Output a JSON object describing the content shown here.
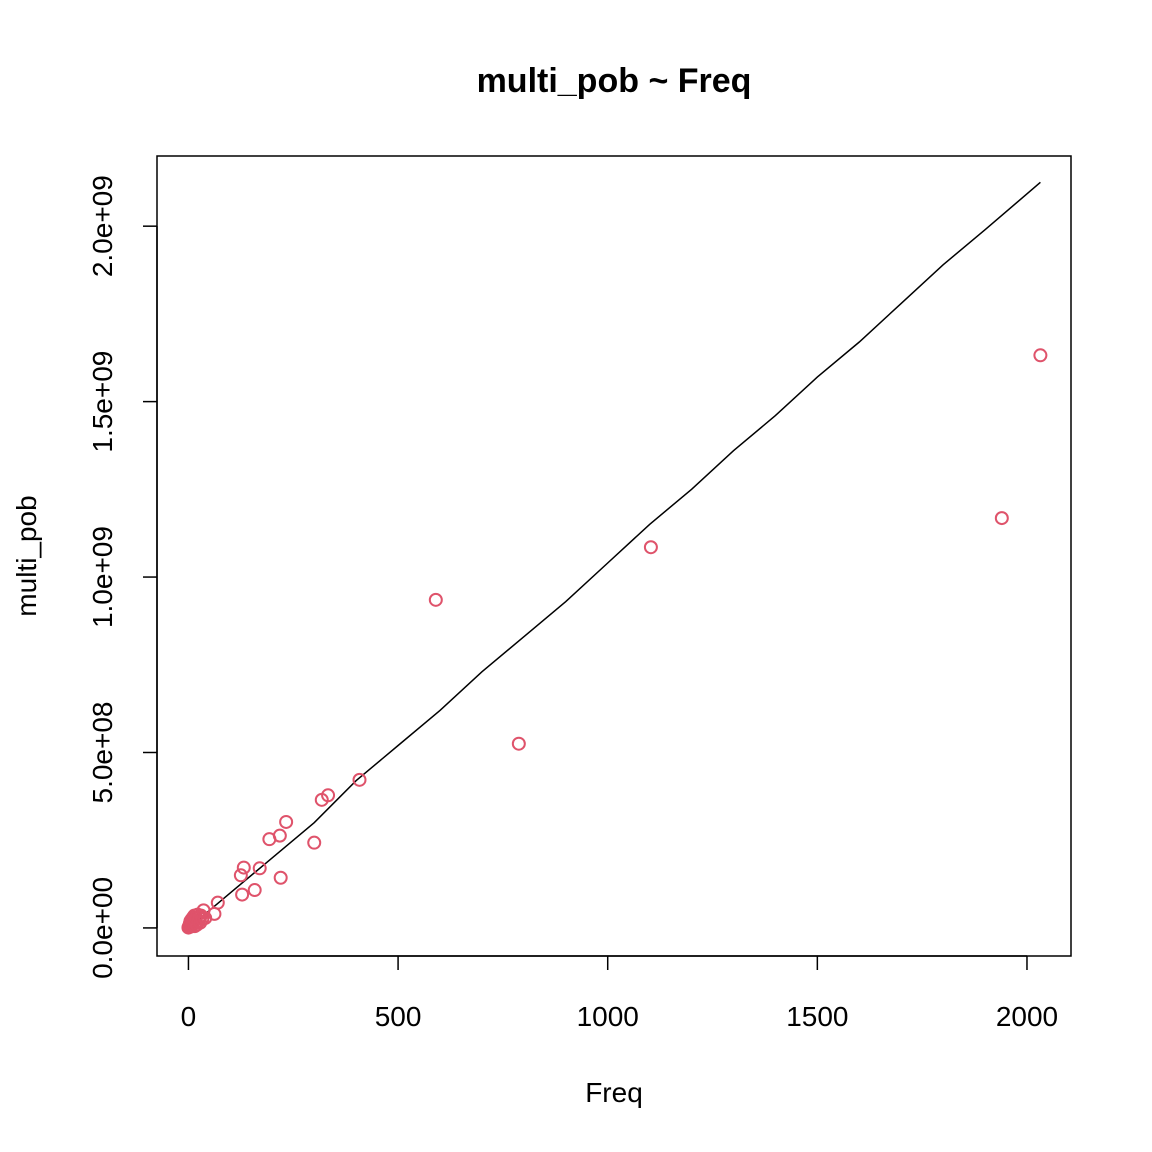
{
  "chart_data": {
    "type": "scatter",
    "title": "multi_pob ~ Freq",
    "xlabel": "Freq",
    "ylabel": "multi_pob",
    "xlim": [
      -75,
      2105
    ],
    "ylim": [
      -80000000,
      2200000000
    ],
    "x_ticks": [
      0,
      500,
      1000,
      1500,
      2000
    ],
    "x_tick_labels": [
      "0",
      "500",
      "1000",
      "1500",
      "2000"
    ],
    "y_ticks": [
      0,
      500000000,
      1000000000,
      1500000000,
      2000000000
    ],
    "y_tick_labels": [
      "0.0e+00",
      "5.0e+08",
      "1.0e+09",
      "1.5e+09",
      "2.0e+09"
    ],
    "grid": false,
    "point_color": "#DF536B",
    "line_color": "#000000",
    "series": [
      {
        "name": "points",
        "points": [
          [
            0,
            1000000
          ],
          [
            1,
            3000000
          ],
          [
            2,
            6000000
          ],
          [
            3,
            10000000
          ],
          [
            4,
            15000000
          ],
          [
            5,
            20000000
          ],
          [
            6,
            4000000
          ],
          [
            7,
            12000000
          ],
          [
            8,
            25000000
          ],
          [
            9,
            8000000
          ],
          [
            10,
            18000000
          ],
          [
            11,
            30000000
          ],
          [
            12,
            22000000
          ],
          [
            14,
            35000000
          ],
          [
            15,
            5000000
          ],
          [
            16,
            14000000
          ],
          [
            18,
            28000000
          ],
          [
            20,
            9000000
          ],
          [
            22,
            38000000
          ],
          [
            24,
            20000000
          ],
          [
            26,
            30000000
          ],
          [
            28,
            15000000
          ],
          [
            30,
            35000000
          ],
          [
            33,
            25000000
          ],
          [
            36,
            50000000
          ],
          [
            40,
            28000000
          ],
          [
            62,
            40000000
          ],
          [
            70,
            72000000
          ],
          [
            125,
            150000000
          ],
          [
            128,
            95000000
          ],
          [
            132,
            172000000
          ],
          [
            158,
            108000000
          ],
          [
            170,
            170000000
          ],
          [
            193,
            253000000
          ],
          [
            218,
            263000000
          ],
          [
            220,
            143000000
          ],
          [
            233,
            302000000
          ],
          [
            300,
            243000000
          ],
          [
            318,
            365000000
          ],
          [
            333,
            378000000
          ],
          [
            408,
            422000000
          ],
          [
            590,
            935000000
          ],
          [
            788,
            525000000
          ],
          [
            1103,
            1085000000
          ],
          [
            1940,
            1168000000
          ],
          [
            2032,
            1632000000
          ]
        ]
      }
    ],
    "line": {
      "name": "fit",
      "points": [
        [
          0,
          0
        ],
        [
          10,
          20000000
        ],
        [
          20,
          24000000
        ],
        [
          30,
          28000000
        ],
        [
          40,
          40000000
        ],
        [
          60,
          60000000
        ],
        [
          100,
          100000000
        ],
        [
          200,
          200000000
        ],
        [
          300,
          300000000
        ],
        [
          400,
          420000000
        ],
        [
          500,
          520000000
        ],
        [
          600,
          620000000
        ],
        [
          700,
          730000000
        ],
        [
          800,
          830000000
        ],
        [
          900,
          930000000
        ],
        [
          1000,
          1040000000
        ],
        [
          1100,
          1150000000
        ],
        [
          1200,
          1250000000
        ],
        [
          1300,
          1360000000
        ],
        [
          1400,
          1460000000
        ],
        [
          1500,
          1570000000
        ],
        [
          1600,
          1670000000
        ],
        [
          1700,
          1780000000
        ],
        [
          1800,
          1890000000
        ],
        [
          1900,
          1990000000
        ],
        [
          2032,
          2125000000
        ]
      ]
    }
  }
}
